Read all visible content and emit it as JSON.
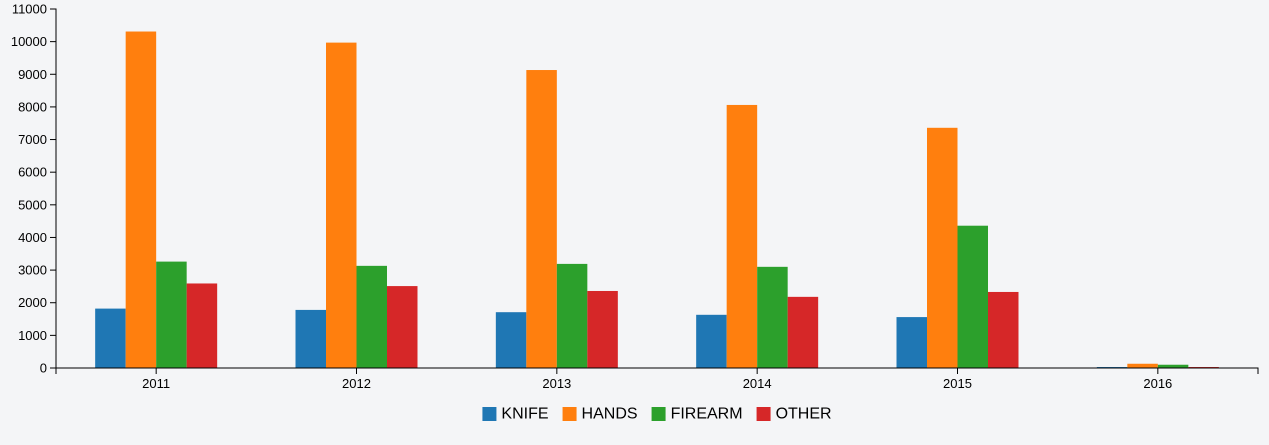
{
  "chart_data": {
    "type": "bar",
    "categories": [
      "2011",
      "2012",
      "2013",
      "2014",
      "2015",
      "2016"
    ],
    "series": [
      {
        "name": "KNIFE",
        "color": "#1f77b4",
        "values": [
          1820,
          1780,
          1710,
          1630,
          1560,
          30
        ]
      },
      {
        "name": "HANDS",
        "color": "#ff7f0e",
        "values": [
          10310,
          9970,
          9130,
          8060,
          7360,
          130
        ]
      },
      {
        "name": "FIREARM",
        "color": "#2ca02c",
        "values": [
          3260,
          3130,
          3190,
          3100,
          4360,
          100
        ]
      },
      {
        "name": "OTHER",
        "color": "#d62728",
        "values": [
          2590,
          2510,
          2360,
          2180,
          2330,
          30
        ]
      }
    ],
    "ylim": [
      0,
      11000
    ],
    "yticks": [
      0,
      1000,
      2000,
      3000,
      4000,
      5000,
      6000,
      7000,
      8000,
      9000,
      10000,
      11000
    ],
    "title": "",
    "xlabel": "",
    "ylabel": "",
    "legend": "bottom-center",
    "grid": false
  }
}
